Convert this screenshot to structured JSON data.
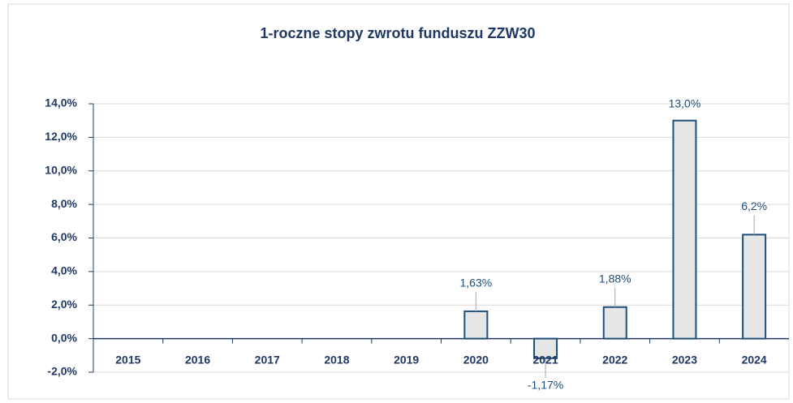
{
  "chart_data": {
    "type": "bar",
    "title": "1-roczne stopy zwrotu funduszu ZZW30",
    "categories": [
      "2015",
      "2016",
      "2017",
      "2018",
      "2019",
      "2020",
      "2021",
      "2022",
      "2023",
      "2024"
    ],
    "values": [
      null,
      null,
      null,
      null,
      null,
      1.63,
      -1.17,
      1.88,
      13.0,
      6.2
    ],
    "value_labels": [
      null,
      null,
      null,
      null,
      null,
      "1,63%",
      "-1,17%",
      "1,88%",
      "13,0%",
      "6,2%"
    ],
    "color": "#e6e6e6",
    "ylim": [
      -2,
      14
    ],
    "yticks": [
      {
        "value": -2,
        "label": "-2,0%"
      },
      {
        "value": 0,
        "label": "0,0%"
      },
      {
        "value": 2,
        "label": "2,0%"
      },
      {
        "value": 4,
        "label": "4,0%"
      },
      {
        "value": 6,
        "label": "6,0%"
      },
      {
        "value": 8,
        "label": "8,0%"
      },
      {
        "value": 10,
        "label": "10,0%"
      },
      {
        "value": 12,
        "label": "12,0%"
      },
      {
        "value": 14,
        "label": "14,0%"
      }
    ],
    "grid": true
  }
}
